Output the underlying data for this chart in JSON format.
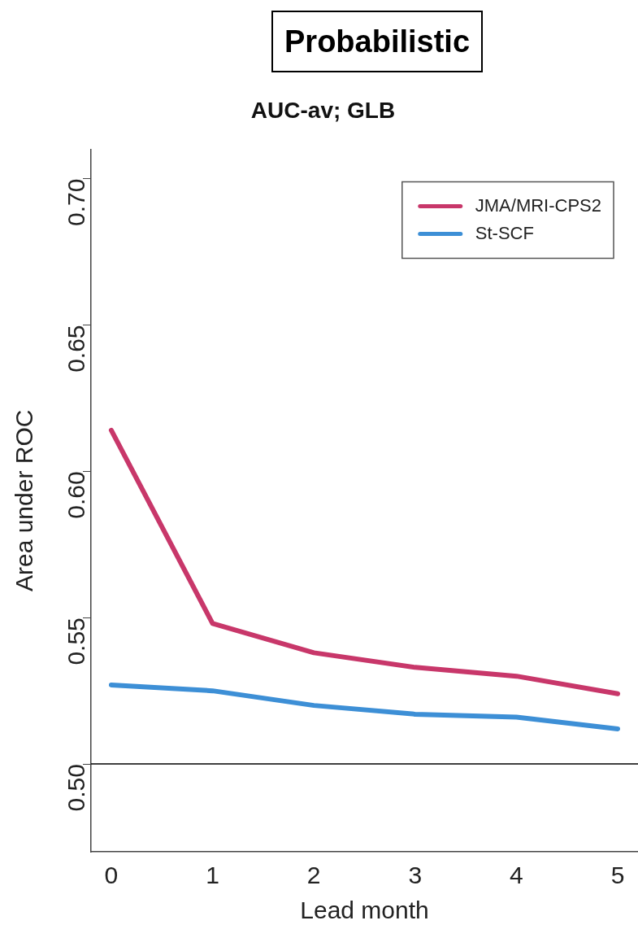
{
  "chart_data": {
    "type": "line",
    "title": "Probabilistic",
    "subtitle": "AUC-av; GLB",
    "xlabel": "Lead month",
    "ylabel": "Area under ROC",
    "x": [
      0,
      1,
      2,
      3,
      4,
      5
    ],
    "series": [
      {
        "name": "JMA/MRI-CPS2",
        "color": "#c8376a",
        "values": [
          0.614,
          0.548,
          0.538,
          0.533,
          0.53,
          0.524
        ]
      },
      {
        "name": "St-SCF",
        "color": "#3d8fd6",
        "values": [
          0.527,
          0.525,
          0.52,
          0.517,
          0.516,
          0.512
        ]
      }
    ],
    "xlim": [
      -0.2,
      5.2
    ],
    "xticks": [
      0,
      1,
      2,
      3,
      4,
      5
    ],
    "ylim": [
      0.47,
      0.71
    ],
    "yticks": [
      {
        "value": 0.5,
        "label": "0.50"
      },
      0.55,
      {
        "value": 0.6,
        "label": "0.60"
      },
      0.65,
      {
        "value": 0.7,
        "label": "0.70"
      }
    ],
    "ref_lines": [
      {
        "axis": "y",
        "value": 0.5,
        "color": "#000000"
      }
    ],
    "grid": false,
    "legend": "top right",
    "marker": "none",
    "line_style": "solid"
  }
}
